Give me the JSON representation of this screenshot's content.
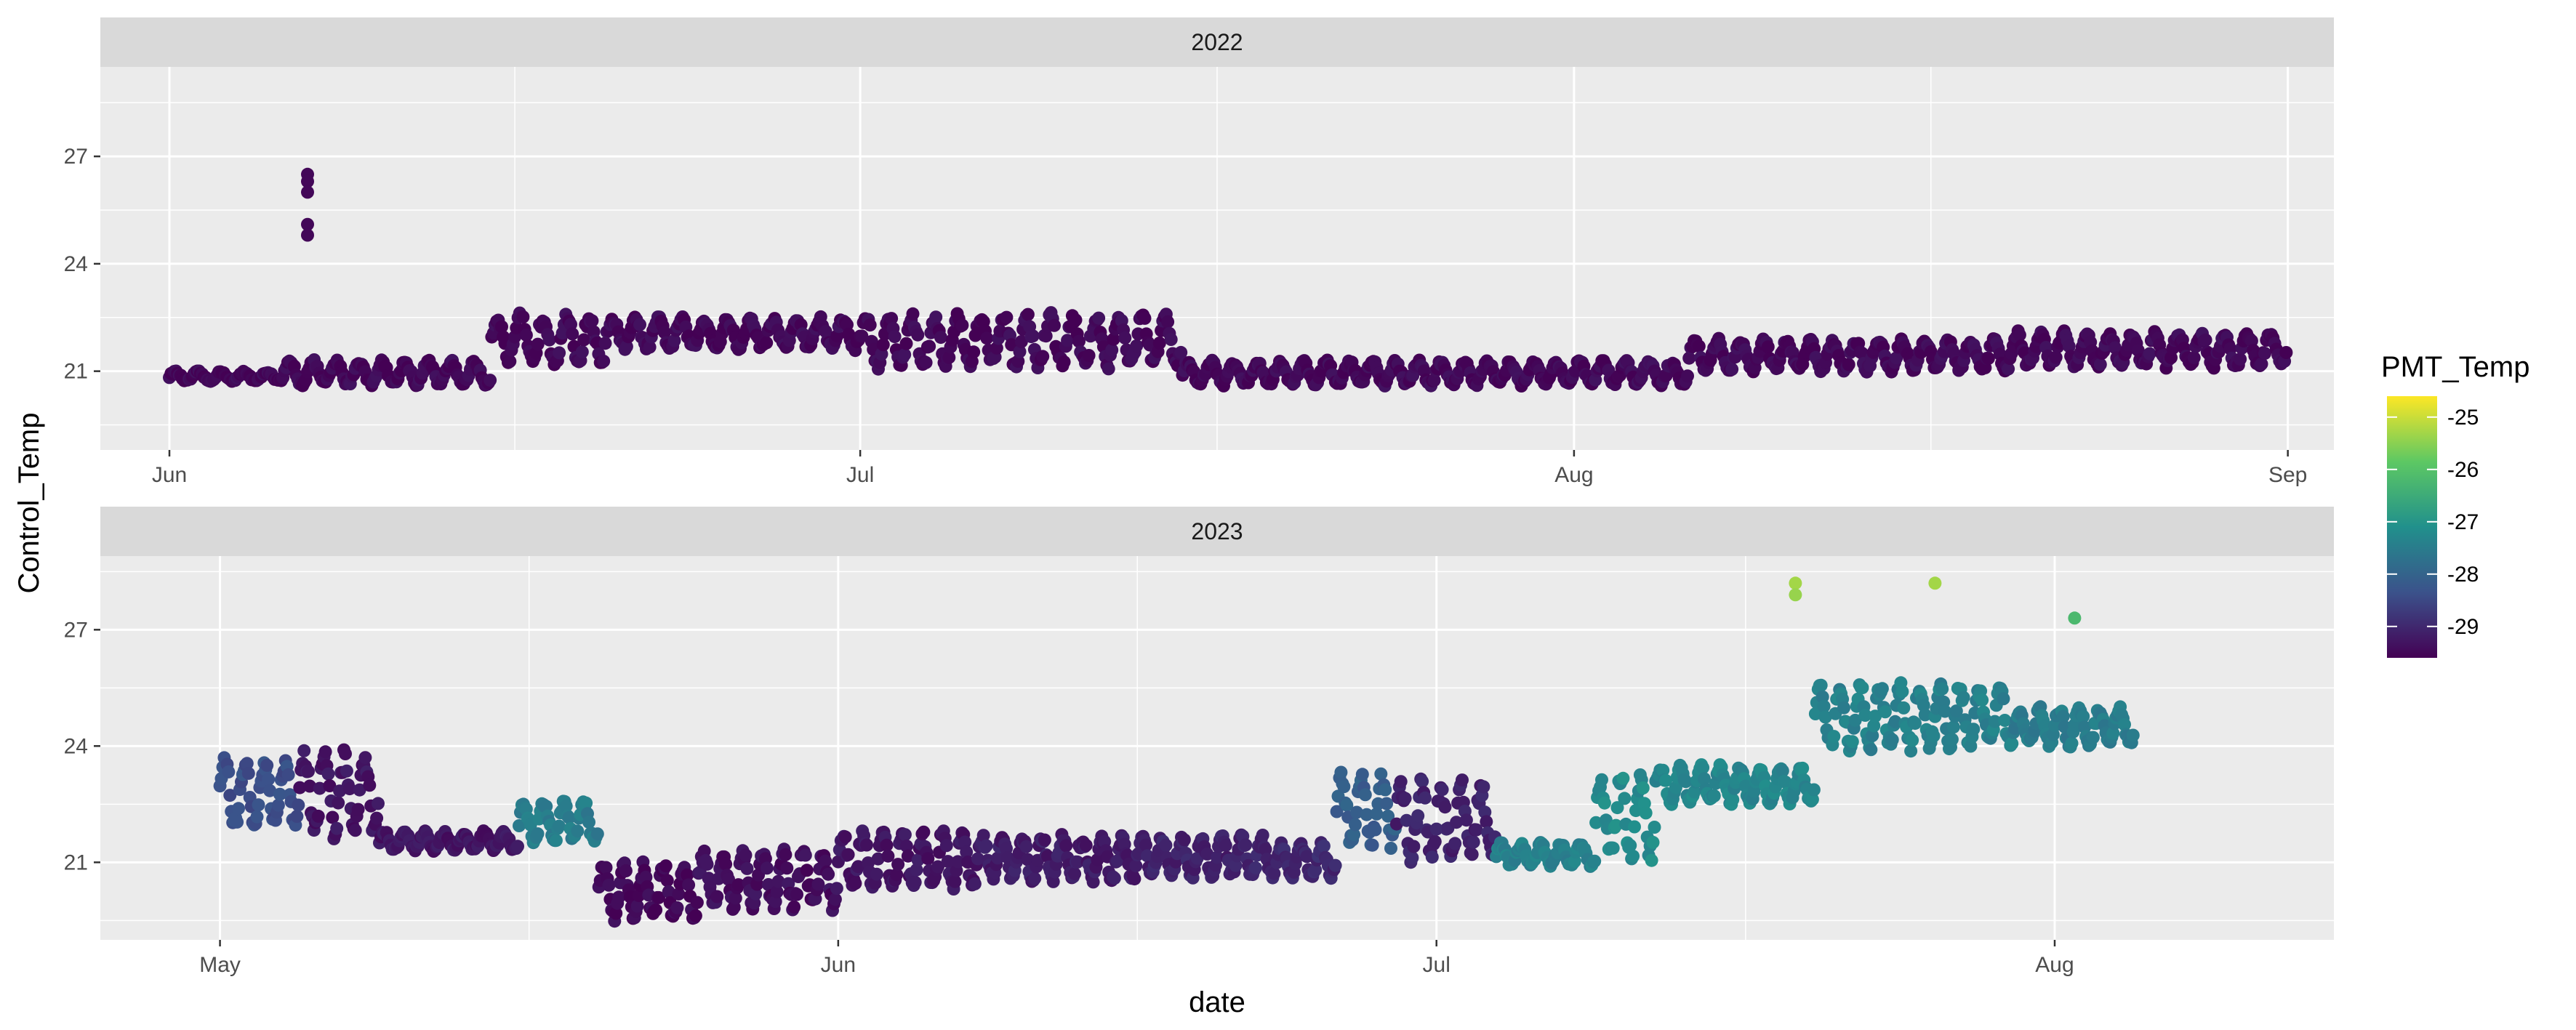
{
  "chart_data": {
    "type": "scatter",
    "ylabel": "Control_Temp",
    "xlabel": "date",
    "legend": {
      "title": "PMT_Temp",
      "position": "right",
      "ticks": [
        -25,
        -26,
        -27,
        -28,
        -29
      ],
      "range": [
        -29.6,
        -24.6
      ]
    },
    "grid": true,
    "facets": [
      {
        "label": "2022",
        "xlim": [
          "2022-05-29",
          "2022-09-03"
        ],
        "ylim": [
          18.8,
          29.5
        ],
        "x_ticks": [
          "2022-06-01",
          "2022-07-01",
          "2022-08-01",
          "2022-09-01"
        ],
        "x_tick_labels": [
          "Jun",
          "Jul",
          "Aug",
          "Sep"
        ],
        "y_ticks": [
          21,
          24,
          27
        ],
        "segments": [
          {
            "start": "2022-06-01",
            "end": "2022-06-06",
            "low": 20.7,
            "high": 21.0,
            "color_value": -29.5
          },
          {
            "start": "2022-06-06",
            "end": "2022-06-15",
            "low": 20.6,
            "high": 21.3,
            "color_value": -29.5
          },
          {
            "start": "2022-06-15",
            "end": "2022-06-20",
            "low": 21.2,
            "high": 22.6,
            "color_value": -29.5
          },
          {
            "start": "2022-06-20",
            "end": "2022-07-01",
            "low": 21.6,
            "high": 22.5,
            "color_value": -29.5
          },
          {
            "start": "2022-07-01",
            "end": "2022-07-15",
            "low": 21.1,
            "high": 22.6,
            "color_value": -29.5
          },
          {
            "start": "2022-07-15",
            "end": "2022-07-26",
            "low": 20.6,
            "high": 21.3,
            "color_value": -29.5
          },
          {
            "start": "2022-07-26",
            "end": "2022-08-06",
            "low": 20.6,
            "high": 21.3,
            "color_value": -29.5
          },
          {
            "start": "2022-08-06",
            "end": "2022-08-20",
            "low": 21.0,
            "high": 21.9,
            "color_value": -29.5
          },
          {
            "start": "2022-08-20",
            "end": "2022-09-01",
            "low": 21.1,
            "high": 22.1,
            "color_value": -29.5
          }
        ],
        "outliers": [
          {
            "x": "2022-06-07",
            "y": 26.5,
            "color_value": -29.5
          },
          {
            "x": "2022-06-07",
            "y": 26.3,
            "color_value": -29.5
          },
          {
            "x": "2022-06-07",
            "y": 26.0,
            "color_value": -29.5
          },
          {
            "x": "2022-06-07",
            "y": 25.1,
            "color_value": -29.5
          },
          {
            "x": "2022-06-07",
            "y": 24.8,
            "color_value": -29.5
          }
        ]
      },
      {
        "label": "2023",
        "xlim": [
          "2023-04-25",
          "2023-08-15"
        ],
        "ylim": [
          19.0,
          28.9
        ],
        "x_ticks": [
          "2023-05-01",
          "2023-06-01",
          "2023-07-01",
          "2023-08-01"
        ],
        "x_tick_labels": [
          "May",
          "Jun",
          "Jul",
          "Aug"
        ],
        "y_ticks": [
          21,
          24,
          27
        ],
        "segments": [
          {
            "start": "2023-05-01",
            "end": "2023-05-05",
            "low": 21.9,
            "high": 23.7,
            "color_value": -28.4
          },
          {
            "start": "2023-05-05",
            "end": "2023-05-09",
            "low": 21.6,
            "high": 23.9,
            "color_value": -29.3
          },
          {
            "start": "2023-05-09",
            "end": "2023-05-16",
            "low": 21.3,
            "high": 21.8,
            "color_value": -29.3
          },
          {
            "start": "2023-05-16",
            "end": "2023-05-20",
            "low": 21.5,
            "high": 22.6,
            "color_value": -27.5
          },
          {
            "start": "2023-05-20",
            "end": "2023-05-25",
            "low": 19.5,
            "high": 21.0,
            "color_value": -29.5
          },
          {
            "start": "2023-05-25",
            "end": "2023-06-01",
            "low": 19.8,
            "high": 21.3,
            "color_value": -29.4
          },
          {
            "start": "2023-06-01",
            "end": "2023-06-08",
            "low": 20.3,
            "high": 21.8,
            "color_value": -29.3
          },
          {
            "start": "2023-06-08",
            "end": "2023-06-16",
            "low": 20.5,
            "high": 21.7,
            "color_value": -29.2
          },
          {
            "start": "2023-06-16",
            "end": "2023-06-23",
            "low": 20.6,
            "high": 21.7,
            "color_value": -29.1
          },
          {
            "start": "2023-06-23",
            "end": "2023-06-26",
            "low": 20.6,
            "high": 21.5,
            "color_value": -29.0
          },
          {
            "start": "2023-06-26",
            "end": "2023-06-29",
            "low": 21.4,
            "high": 23.3,
            "color_value": -28.1
          },
          {
            "start": "2023-06-29",
            "end": "2023-07-04",
            "low": 21.0,
            "high": 23.1,
            "color_value": -29.1
          },
          {
            "start": "2023-07-04",
            "end": "2023-07-09",
            "low": 20.9,
            "high": 21.5,
            "color_value": -27.4
          },
          {
            "start": "2023-07-09",
            "end": "2023-07-12",
            "low": 21.0,
            "high": 23.3,
            "color_value": -27.2
          },
          {
            "start": "2023-07-12",
            "end": "2023-07-20",
            "low": 22.5,
            "high": 23.5,
            "color_value": -27.3
          },
          {
            "start": "2023-07-20",
            "end": "2023-07-30",
            "low": 23.9,
            "high": 25.6,
            "color_value": -27.4
          },
          {
            "start": "2023-07-30",
            "end": "2023-08-05",
            "low": 24.0,
            "high": 25.0,
            "color_value": -27.5
          }
        ],
        "outliers": [
          {
            "x": "2023-07-19",
            "y": 28.2,
            "color_value": -25.3
          },
          {
            "x": "2023-07-19",
            "y": 27.9,
            "color_value": -25.4
          },
          {
            "x": "2023-07-26",
            "y": 28.2,
            "color_value": -25.3
          },
          {
            "x": "2023-08-02",
            "y": 27.3,
            "color_value": -26.2
          }
        ]
      }
    ]
  }
}
